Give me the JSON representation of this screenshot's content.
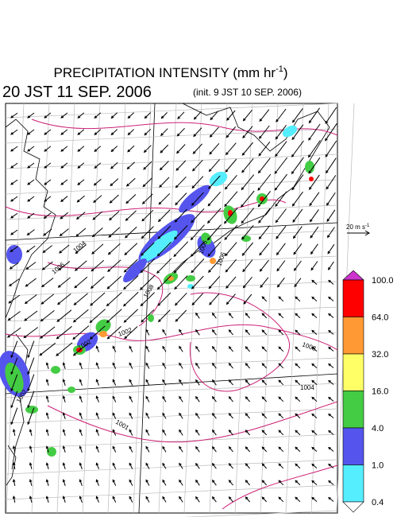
{
  "header": {
    "title": {
      "text": "PRECIPITATION INTENSITY (mm hr",
      "exponent": "-1",
      "close": ")"
    },
    "valid_time": "20 JST 11 SEP. 2006",
    "init_time": "(init. 9 JST 10 SEP. 2006)"
  },
  "reference_vector": {
    "text": "20 m s",
    "exponent": "-1"
  },
  "colorbar": {
    "labels": [
      "100.0",
      "64.0",
      "32.0",
      "16.0",
      "4.0",
      "1.0",
      "0.4"
    ],
    "colors": [
      "#cc33cc",
      "#ff0000",
      "#ff9933",
      "#ffff66",
      "#44cc44",
      "#5555ee",
      "#55eeff",
      "#ffffff"
    ]
  },
  "contour_labels": [
    "1004",
    "1006",
    "1006",
    "1008",
    "1006",
    "1002",
    "1002",
    "1001",
    "1008",
    "1004",
    "1002"
  ]
}
